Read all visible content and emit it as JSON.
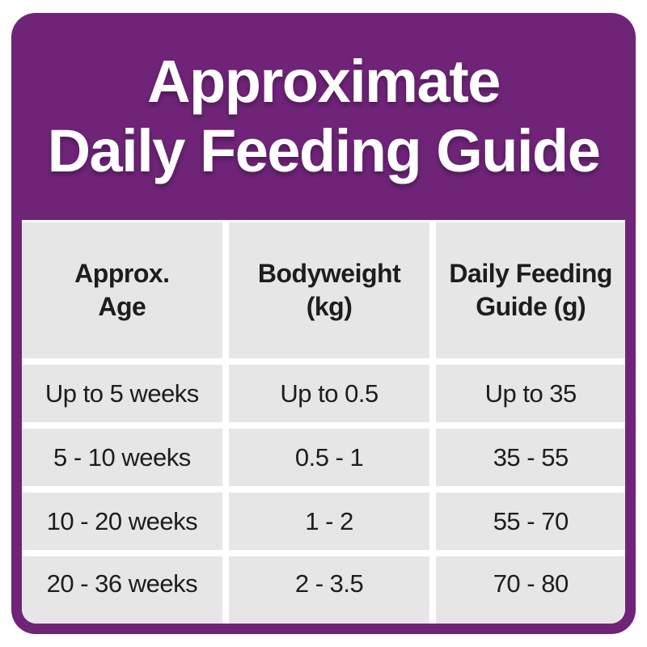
{
  "title": {
    "line1": "Approximate",
    "line2": "Daily Feeding Guide"
  },
  "colors": {
    "purple": "#6f2478",
    "cell_gray": "#e7e6e7",
    "text_dark": "#1b1d1e",
    "title_white": "#ffffff"
  },
  "table": {
    "columns": [
      {
        "header": [
          "Approx.",
          "Age"
        ]
      },
      {
        "header": [
          "Bodyweight",
          "(kg)"
        ]
      },
      {
        "header": [
          "Daily Feeding",
          "Guide (g)"
        ]
      }
    ],
    "rows": [
      [
        "Up to 5 weeks",
        "Up to 0.5",
        "Up to 35"
      ],
      [
        "5 - 10 weeks",
        "0.5 - 1",
        "35 - 55"
      ],
      [
        "10 - 20 weeks",
        "1 - 2",
        "55 - 70"
      ],
      [
        "20 - 36 weeks",
        "2 - 3.5",
        "70 - 80"
      ]
    ]
  },
  "chart_data": {
    "type": "table",
    "title": "Approximate Daily Feeding Guide",
    "columns": [
      "Approx. Age",
      "Bodyweight (kg)",
      "Daily Feeding Guide (g)"
    ],
    "rows": [
      [
        "Up to 5 weeks",
        "Up to 0.5",
        "Up to 35"
      ],
      [
        "5 - 10 weeks",
        "0.5 - 1",
        "35 - 55"
      ],
      [
        "10 - 20 weeks",
        "1 - 2",
        "55 - 70"
      ],
      [
        "20 - 36 weeks",
        "2 - 3.5",
        "70 - 80"
      ]
    ]
  }
}
